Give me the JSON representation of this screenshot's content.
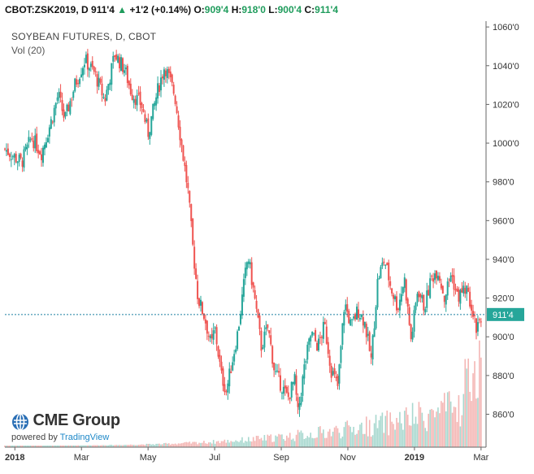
{
  "header": {
    "symbol": "CBOT:ZSK2019, D",
    "last": "911'4",
    "change": "+1'2 (+0.14%)",
    "o_label": "O:",
    "o_value": "909'4",
    "h_label": "H:",
    "h_value": "918'0",
    "l_label": "L:",
    "l_value": "900'4",
    "c_label": "C:",
    "c_value": "911'4"
  },
  "legend": {
    "title": "SOYBEAN FUTURES, D, CBOT",
    "volume": "Vol (20)"
  },
  "branding": {
    "logo_text": "CME Group",
    "powered_by": "powered by",
    "powered_by_link": "TradingView"
  },
  "colors": {
    "up": "#26a69a",
    "down": "#ef5350",
    "vol_up": "#a8d8cf",
    "vol_down": "#f4b6b4",
    "price_line": "#1a7fa0"
  },
  "chart_data": {
    "type": "candlestick",
    "title": "SOYBEAN FUTURES, D, CBOT",
    "y_ticks": [
      "1060'0",
      "1040'0",
      "1020'0",
      "1000'0",
      "980'0",
      "960'0",
      "940'0",
      "920'0",
      "900'0",
      "880'0",
      "860'0"
    ],
    "y_tick_values": [
      1060,
      1040,
      1020,
      1000,
      980,
      960,
      940,
      920,
      900,
      880,
      860
    ],
    "ylim": [
      843,
      1063
    ],
    "x_ticks": [
      {
        "label": "2018",
        "month": 0,
        "bold": true
      },
      {
        "label": "Mar",
        "month": 2
      },
      {
        "label": "May",
        "month": 4
      },
      {
        "label": "Jul",
        "month": 6
      },
      {
        "label": "Sep",
        "month": 8
      },
      {
        "label": "Nov",
        "month": 10
      },
      {
        "label": "2019",
        "month": 12,
        "bold": true
      },
      {
        "label": "Mar",
        "month": 14
      }
    ],
    "last_price_label": "911'4",
    "last_price": 911.5,
    "close_path": [
      [
        -0.3,
        997
      ],
      [
        0.2,
        990
      ],
      [
        0.5,
        1003
      ],
      [
        0.8,
        995
      ],
      [
        1.1,
        1012
      ],
      [
        1.3,
        1025
      ],
      [
        1.5,
        1012
      ],
      [
        1.8,
        1030
      ],
      [
        2.1,
        1043
      ],
      [
        2.4,
        1036
      ],
      [
        2.7,
        1022
      ],
      [
        3.0,
        1046
      ],
      [
        3.3,
        1038
      ],
      [
        3.5,
        1026
      ],
      [
        3.8,
        1020
      ],
      [
        4.0,
        1005
      ],
      [
        4.3,
        1028
      ],
      [
        4.5,
        1040
      ],
      [
        4.8,
        1025
      ],
      [
        5.0,
        1000
      ],
      [
        5.2,
        975
      ],
      [
        5.35,
        945
      ],
      [
        5.5,
        920
      ],
      [
        5.7,
        910
      ],
      [
        5.9,
        895
      ],
      [
        6.0,
        905
      ],
      [
        6.2,
        880
      ],
      [
        6.35,
        872
      ],
      [
        6.5,
        885
      ],
      [
        6.7,
        903
      ],
      [
        6.9,
        930
      ],
      [
        7.0,
        942
      ],
      [
        7.2,
        920
      ],
      [
        7.4,
        895
      ],
      [
        7.6,
        905
      ],
      [
        7.8,
        882
      ],
      [
        8.0,
        875
      ],
      [
        8.2,
        868
      ],
      [
        8.4,
        878
      ],
      [
        8.5,
        860
      ],
      [
        8.7,
        885
      ],
      [
        8.9,
        902
      ],
      [
        9.1,
        895
      ],
      [
        9.3,
        906
      ],
      [
        9.5,
        883
      ],
      [
        9.7,
        874
      ],
      [
        9.9,
        918
      ],
      [
        10.1,
        905
      ],
      [
        10.3,
        914
      ],
      [
        10.5,
        908
      ],
      [
        10.7,
        888
      ],
      [
        10.9,
        930
      ],
      [
        11.1,
        940
      ],
      [
        11.3,
        925
      ],
      [
        11.5,
        915
      ],
      [
        11.7,
        930
      ],
      [
        11.9,
        898
      ],
      [
        12.1,
        925
      ],
      [
        12.3,
        915
      ],
      [
        12.5,
        930
      ],
      [
        12.7,
        935
      ],
      [
        12.9,
        920
      ],
      [
        13.1,
        933
      ],
      [
        13.3,
        920
      ],
      [
        13.5,
        925
      ],
      [
        13.7,
        918
      ],
      [
        13.85,
        905
      ],
      [
        14.0,
        911.5
      ]
    ],
    "volume_note": "volume histogram at bottom, increasing toward right"
  }
}
